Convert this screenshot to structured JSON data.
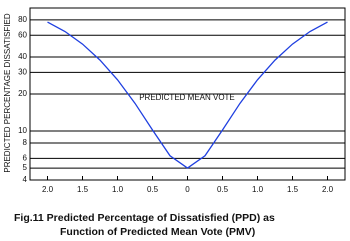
{
  "chart_data": {
    "type": "line",
    "caption": [
      "Fig.11  Predicted Percentage of Dissatisfied (PPD) as",
      "Function of Predicted Mean Vote (PMV)"
    ],
    "x_label": "PREDICTED MEAN VOTE",
    "y_label": "PREDICTED PERCENTAGE DISSATISFIED",
    "x": [
      -2,
      -1.75,
      -1.5,
      -1.25,
      -1,
      -0.75,
      -0.5,
      -0.25,
      0,
      0.25,
      0.5,
      0.75,
      1,
      1.25,
      1.5,
      1.75,
      2
    ],
    "series": [
      {
        "color": "#1f3fe0",
        "values": [
          76.8,
          64.4,
          50.9,
          37.7,
          26.1,
          16.8,
          10.2,
          6.3,
          5,
          6.3,
          10.2,
          16.8,
          26.1,
          37.7,
          50.9,
          64.4,
          76.8
        ]
      }
    ],
    "xlim": [
      -2.25,
      2.25
    ],
    "xticks": [
      {
        "value": -2,
        "label": "2.0"
      },
      {
        "value": -1.5,
        "label": "1.5"
      },
      {
        "value": -1,
        "label": "1.0"
      },
      {
        "value": -0.5,
        "label": "0.5"
      },
      0,
      0.5,
      {
        "value": 1,
        "label": "1.0"
      },
      1.5,
      {
        "value": 2,
        "label": "2.0"
      }
    ],
    "ylim": [
      4,
      100
    ],
    "yscale": "log",
    "yticks": [
      4,
      5,
      6,
      8,
      10,
      20,
      30,
      40,
      60,
      80
    ],
    "grid": true
  }
}
